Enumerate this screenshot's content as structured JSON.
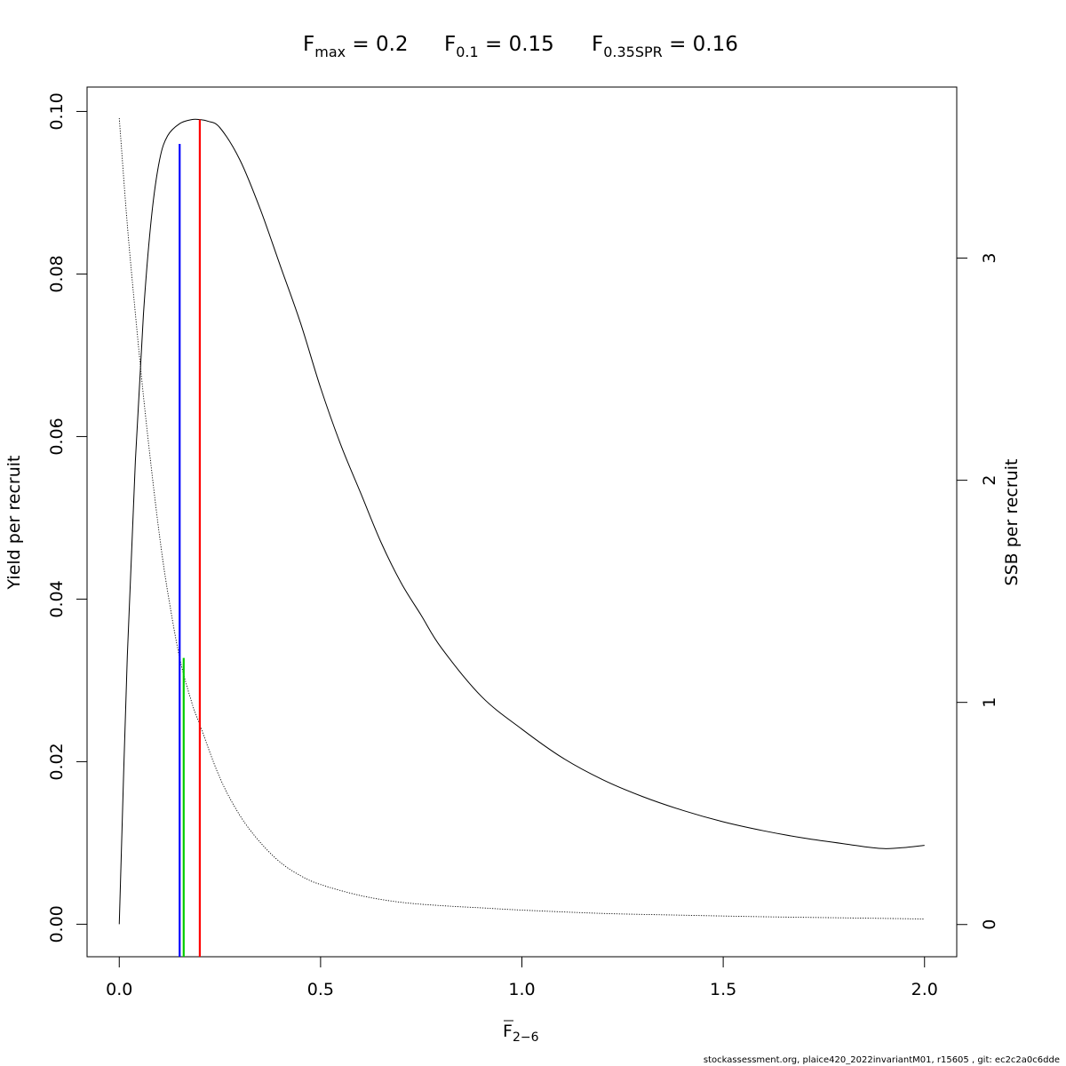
{
  "title": {
    "fmax": {
      "symbol": "F",
      "sub": "max",
      "rest": " = 0.2"
    },
    "f01": {
      "symbol": "F",
      "sub": "0.1",
      "rest": " = 0.15"
    },
    "fspr": {
      "symbol": "F",
      "sub": "0.35SPR",
      "rest": " = 0.16"
    }
  },
  "footer": "stockassessment.org, plaice420_2022invariantM01, r15605 , git: ec2c2a0c6dde",
  "chart_data": {
    "type": "line",
    "xlabel": {
      "symbol": "F",
      "sub": "2−6"
    },
    "ylabel_left": "Yield per recruit",
    "ylabel_right": "SSB per recruit",
    "xlim": [
      -0.08,
      2.08
    ],
    "ylim_left": [
      -0.004,
      0.103
    ],
    "ylim_right": [
      -0.145,
      3.77
    ],
    "x_ticks": [
      0.0,
      0.5,
      1.0,
      1.5,
      2.0
    ],
    "x_tick_labels": [
      "0.0",
      "0.5",
      "1.0",
      "1.5",
      "2.0"
    ],
    "y_ticks_left": [
      0.0,
      0.02,
      0.04,
      0.06,
      0.08,
      0.1
    ],
    "y_tick_labels_left": [
      "0.00",
      "0.02",
      "0.04",
      "0.06",
      "0.08",
      "0.10"
    ],
    "y_ticks_right": [
      0,
      1,
      2,
      3
    ],
    "y_tick_labels_right": [
      "0",
      "1",
      "2",
      "3"
    ],
    "grid": false,
    "series": [
      {
        "axis": "left",
        "style": "solid",
        "color": "#000000",
        "x": [
          0,
          0.02,
          0.04,
          0.06,
          0.08,
          0.1,
          0.12,
          0.15,
          0.18,
          0.2,
          0.22,
          0.25,
          0.3,
          0.35,
          0.4,
          0.45,
          0.5,
          0.55,
          0.6,
          0.65,
          0.7,
          0.75,
          0.8,
          0.9,
          1.0,
          1.1,
          1.2,
          1.3,
          1.4,
          1.5,
          1.6,
          1.7,
          1.8,
          1.9,
          2.0
        ],
        "y": [
          0,
          0.033,
          0.057,
          0.075,
          0.087,
          0.094,
          0.097,
          0.0985,
          0.099,
          0.099,
          0.0988,
          0.098,
          0.094,
          0.088,
          0.081,
          0.074,
          0.066,
          0.059,
          0.053,
          0.047,
          0.042,
          0.038,
          0.034,
          0.028,
          0.024,
          0.0205,
          0.0178,
          0.0157,
          0.014,
          0.0126,
          0.0115,
          0.0106,
          0.0099,
          0.0093,
          0.0097
        ]
      },
      {
        "axis": "right",
        "style": "dotted",
        "color": "#000000",
        "x": [
          0,
          0.02,
          0.04,
          0.06,
          0.08,
          0.1,
          0.12,
          0.15,
          0.18,
          0.2,
          0.25,
          0.3,
          0.35,
          0.4,
          0.45,
          0.5,
          0.6,
          0.7,
          0.8,
          0.9,
          1.0,
          1.2,
          1.4,
          1.6,
          1.8,
          2.0
        ],
        "y": [
          3.63,
          3.15,
          2.75,
          2.38,
          2.05,
          1.75,
          1.5,
          1.2,
          1.0,
          0.9,
          0.66,
          0.49,
          0.37,
          0.28,
          0.22,
          0.18,
          0.13,
          0.1,
          0.085,
          0.075,
          0.065,
          0.05,
          0.042,
          0.035,
          0.03,
          0.025
        ]
      }
    ],
    "reference_lines": [
      {
        "name": "F0.1",
        "x": 0.15,
        "y": 0.096,
        "axis": "left",
        "color": "#0000ff"
      },
      {
        "name": "F0.35SPR",
        "x": 0.16,
        "y": 1.2,
        "axis": "right",
        "color": "#00cc00"
      },
      {
        "name": "Fmax",
        "x": 0.2,
        "y": 0.099,
        "axis": "left",
        "color": "#ff0000"
      }
    ]
  }
}
